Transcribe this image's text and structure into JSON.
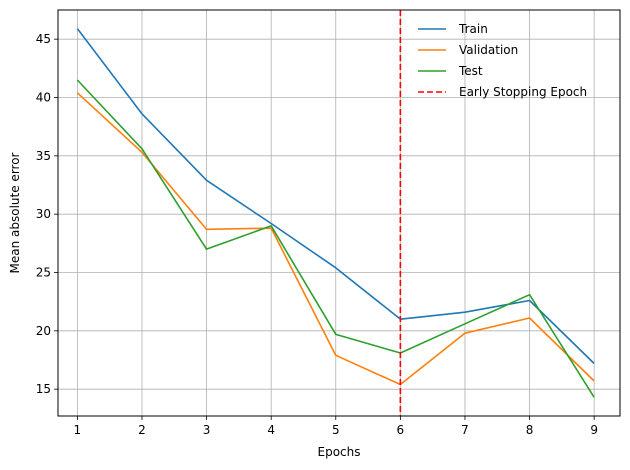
{
  "chart_data": {
    "type": "line",
    "title": "",
    "xlabel": "Epochs",
    "ylabel": "Mean absolute error",
    "x": [
      1,
      2,
      3,
      4,
      5,
      6,
      7,
      8,
      9
    ],
    "xlim": [
      0.7,
      9.4
    ],
    "ylim": [
      12.7,
      47.5
    ],
    "xticks": [
      1,
      2,
      3,
      4,
      5,
      6,
      7,
      8,
      9
    ],
    "yticks": [
      15,
      20,
      25,
      30,
      35,
      40,
      45
    ],
    "grid": true,
    "legend_position": "top-right",
    "series": [
      {
        "name": "Train",
        "color": "#1f77b4",
        "values": [
          45.9,
          38.6,
          32.9,
          29.2,
          25.4,
          21.0,
          21.6,
          22.6,
          17.2
        ]
      },
      {
        "name": "Validation",
        "color": "#ff7f0e",
        "values": [
          40.4,
          35.3,
          28.7,
          28.8,
          17.9,
          15.4,
          19.8,
          21.1,
          15.7
        ]
      },
      {
        "name": "Test",
        "color": "#2ca02c",
        "values": [
          41.5,
          35.6,
          27.0,
          29.0,
          19.7,
          18.1,
          20.6,
          23.1,
          14.3
        ]
      }
    ],
    "vline": {
      "name": "Early Stopping Epoch",
      "x": 6,
      "color": "#ff0000",
      "style": "dashed"
    }
  }
}
